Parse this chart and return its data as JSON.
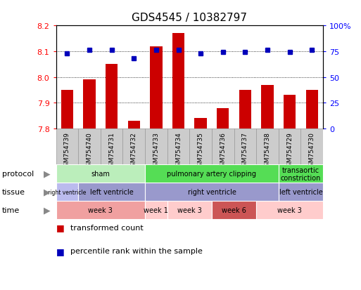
{
  "title": "GDS4545 / 10382797",
  "samples": [
    "GSM754739",
    "GSM754740",
    "GSM754731",
    "GSM754732",
    "GSM754733",
    "GSM754734",
    "GSM754735",
    "GSM754736",
    "GSM754737",
    "GSM754738",
    "GSM754729",
    "GSM754730"
  ],
  "red_values": [
    7.95,
    7.99,
    8.05,
    7.83,
    8.12,
    8.17,
    7.84,
    7.88,
    7.95,
    7.97,
    7.93,
    7.95
  ],
  "blue_values": [
    73,
    76,
    76,
    68,
    76,
    76,
    73,
    74,
    74,
    76,
    74,
    76
  ],
  "ylim_left": [
    7.8,
    8.2
  ],
  "ylim_right": [
    0,
    100
  ],
  "yticks_left": [
    7.8,
    7.9,
    8.0,
    8.1,
    8.2
  ],
  "yticks_right": [
    0,
    25,
    50,
    75,
    100
  ],
  "ytick_labels_right": [
    "0",
    "25",
    "50",
    "75",
    "100%"
  ],
  "bar_color": "#cc0000",
  "dot_color": "#0000bb",
  "xtick_bg": "#cccccc",
  "protocol_rows": [
    {
      "label": "sham",
      "start": 0,
      "end": 4,
      "color": "#bbeebb"
    },
    {
      "label": "pulmonary artery clipping",
      "start": 4,
      "end": 10,
      "color": "#55dd55"
    },
    {
      "label": "transaortic\nconstriction",
      "start": 10,
      "end": 12,
      "color": "#55dd55"
    }
  ],
  "tissue_rows": [
    {
      "label": "right ventricle",
      "start": 0,
      "end": 1,
      "color": "#bbbbee"
    },
    {
      "label": "left ventricle",
      "start": 1,
      "end": 4,
      "color": "#8888cc"
    },
    {
      "label": "right ventricle",
      "start": 4,
      "end": 10,
      "color": "#8888cc"
    },
    {
      "label": "left ventricle",
      "start": 10,
      "end": 12,
      "color": "#8888cc"
    }
  ],
  "time_color_list": [
    "#f0a0a0",
    "#ffcccc",
    "#ffcccc",
    "#cc5555",
    "#ffcccc"
  ],
  "time_rows": [
    {
      "label": "week 3",
      "start": 0,
      "end": 4
    },
    {
      "label": "week 1",
      "start": 4,
      "end": 5
    },
    {
      "label": "week 3",
      "start": 5,
      "end": 7
    },
    {
      "label": "week 6",
      "start": 7,
      "end": 9
    },
    {
      "label": "week 3",
      "start": 9,
      "end": 12
    }
  ],
  "row_labels": [
    "protocol",
    "tissue",
    "time"
  ],
  "background_color": "#ffffff"
}
